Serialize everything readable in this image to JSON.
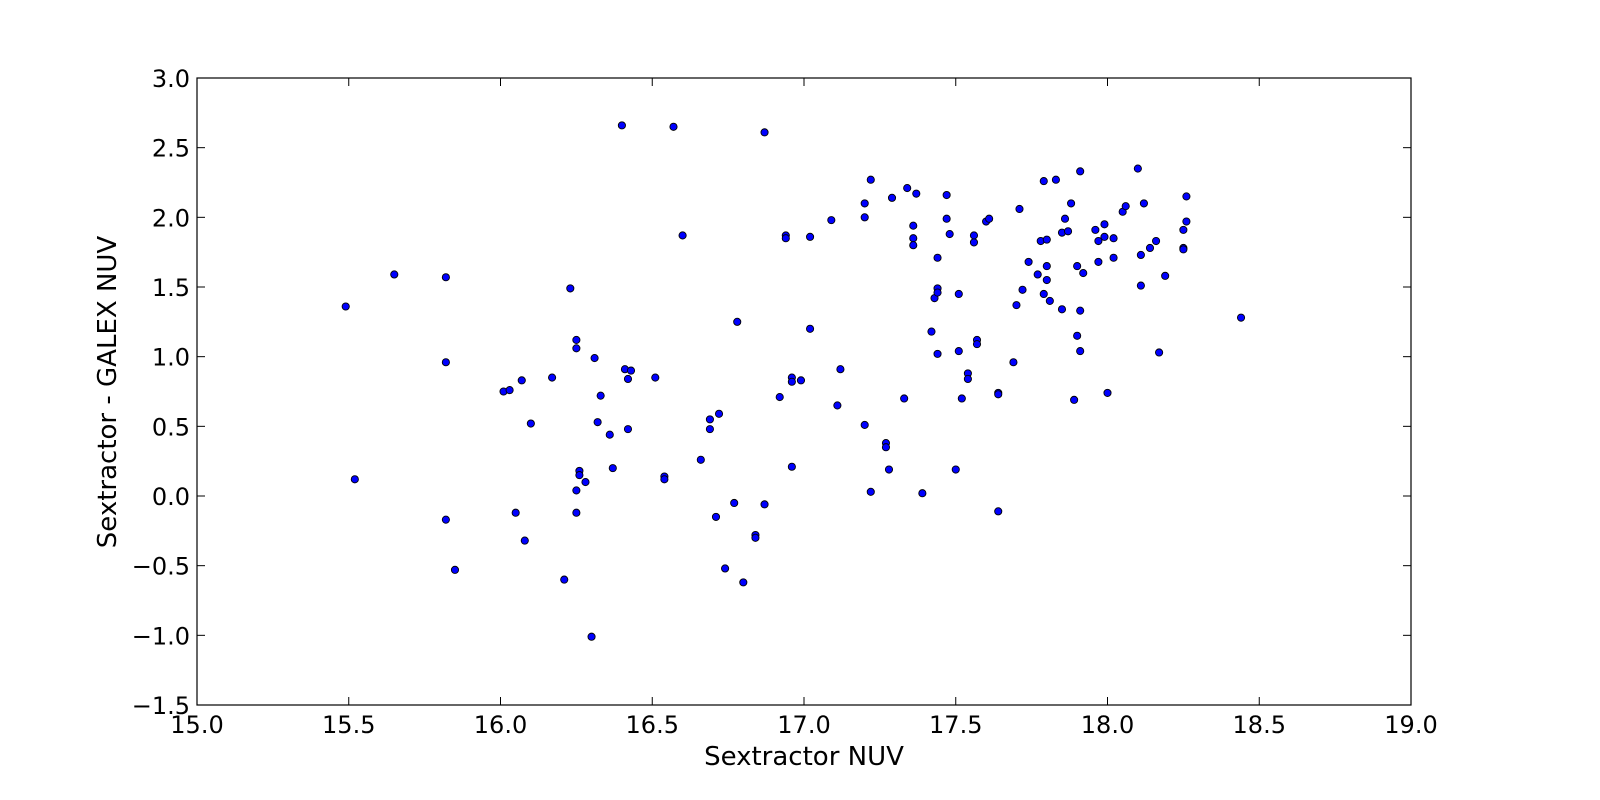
{
  "chart_data": {
    "type": "scatter",
    "title": "",
    "xlabel": "Sextractor NUV",
    "ylabel": "Sextractor - GALEX NUV",
    "xlim": [
      15.0,
      19.0
    ],
    "ylim": [
      -1.5,
      3.0
    ],
    "xticks": [
      15.0,
      15.5,
      16.0,
      16.5,
      17.0,
      17.5,
      18.0,
      18.5,
      19.0
    ],
    "yticks": [
      -1.5,
      -1.0,
      -0.5,
      0.0,
      0.5,
      1.0,
      1.5,
      2.0,
      2.5,
      3.0
    ],
    "xtick_labels": [
      "15.0",
      "15.5",
      "16.0",
      "16.5",
      "17.0",
      "17.5",
      "18.0",
      "18.5",
      "19.0"
    ],
    "ytick_labels": [
      "−1.5",
      "−1.0",
      "−0.5",
      "0.0",
      "0.5",
      "1.0",
      "1.5",
      "2.0",
      "2.5",
      "3.0"
    ],
    "grid": false,
    "marker_color": "#0000ff",
    "marker_edge_color": "#000000",
    "points": [
      [
        15.49,
        1.36
      ],
      [
        15.52,
        0.12
      ],
      [
        15.65,
        1.59
      ],
      [
        15.82,
        1.57
      ],
      [
        15.82,
        0.96
      ],
      [
        15.82,
        -0.17
      ],
      [
        15.85,
        -0.53
      ],
      [
        16.01,
        0.75
      ],
      [
        16.03,
        0.76
      ],
      [
        16.05,
        -0.12
      ],
      [
        16.07,
        0.83
      ],
      [
        16.08,
        -0.32
      ],
      [
        16.1,
        0.52
      ],
      [
        16.17,
        0.85
      ],
      [
        16.21,
        -0.6
      ],
      [
        16.23,
        1.49
      ],
      [
        16.25,
        1.12
      ],
      [
        16.25,
        1.06
      ],
      [
        16.25,
        0.04
      ],
      [
        16.25,
        -0.12
      ],
      [
        16.26,
        0.18
      ],
      [
        16.26,
        0.15
      ],
      [
        16.28,
        0.1
      ],
      [
        16.3,
        -1.01
      ],
      [
        16.31,
        0.99
      ],
      [
        16.32,
        0.53
      ],
      [
        16.33,
        0.72
      ],
      [
        16.36,
        0.44
      ],
      [
        16.37,
        0.2
      ],
      [
        16.4,
        2.66
      ],
      [
        16.41,
        0.91
      ],
      [
        16.42,
        0.84
      ],
      [
        16.42,
        0.48
      ],
      [
        16.43,
        0.9
      ],
      [
        16.51,
        0.85
      ],
      [
        16.54,
        0.14
      ],
      [
        16.54,
        0.12
      ],
      [
        16.57,
        2.65
      ],
      [
        16.6,
        1.87
      ],
      [
        16.66,
        0.26
      ],
      [
        16.69,
        0.55
      ],
      [
        16.69,
        0.48
      ],
      [
        16.71,
        -0.15
      ],
      [
        16.72,
        0.59
      ],
      [
        16.74,
        -0.52
      ],
      [
        16.77,
        -0.05
      ],
      [
        16.78,
        1.25
      ],
      [
        16.8,
        -0.62
      ],
      [
        16.84,
        -0.28
      ],
      [
        16.84,
        -0.3
      ],
      [
        16.87,
        2.61
      ],
      [
        16.87,
        -0.06
      ],
      [
        16.92,
        0.71
      ],
      [
        16.94,
        1.87
      ],
      [
        16.94,
        1.85
      ],
      [
        16.96,
        0.85
      ],
      [
        16.96,
        0.82
      ],
      [
        16.96,
        0.21
      ],
      [
        16.99,
        0.83
      ],
      [
        17.02,
        1.86
      ],
      [
        17.02,
        1.2
      ],
      [
        17.09,
        1.98
      ],
      [
        17.11,
        0.65
      ],
      [
        17.12,
        0.91
      ],
      [
        17.2,
        2.1
      ],
      [
        17.2,
        2.0
      ],
      [
        17.2,
        0.51
      ],
      [
        17.22,
        2.27
      ],
      [
        17.22,
        0.03
      ],
      [
        17.27,
        0.38
      ],
      [
        17.27,
        0.35
      ],
      [
        17.28,
        0.19
      ],
      [
        17.29,
        2.14
      ],
      [
        17.33,
        0.7
      ],
      [
        17.34,
        2.21
      ],
      [
        17.36,
        1.94
      ],
      [
        17.36,
        1.85
      ],
      [
        17.36,
        1.8
      ],
      [
        17.37,
        2.17
      ],
      [
        17.39,
        0.02
      ],
      [
        17.42,
        1.18
      ],
      [
        17.43,
        1.42
      ],
      [
        17.44,
        1.49
      ],
      [
        17.44,
        1.46
      ],
      [
        17.44,
        1.71
      ],
      [
        17.44,
        1.02
      ],
      [
        17.47,
        2.16
      ],
      [
        17.47,
        1.99
      ],
      [
        17.48,
        1.88
      ],
      [
        17.5,
        0.19
      ],
      [
        17.51,
        1.45
      ],
      [
        17.51,
        1.04
      ],
      [
        17.52,
        0.7
      ],
      [
        17.54,
        0.88
      ],
      [
        17.54,
        0.84
      ],
      [
        17.56,
        1.87
      ],
      [
        17.56,
        1.82
      ],
      [
        17.57,
        1.12
      ],
      [
        17.57,
        1.09
      ],
      [
        17.6,
        1.97
      ],
      [
        17.61,
        1.99
      ],
      [
        17.64,
        0.74
      ],
      [
        17.64,
        0.73
      ],
      [
        17.64,
        -0.11
      ],
      [
        17.69,
        0.96
      ],
      [
        17.7,
        1.37
      ],
      [
        17.71,
        2.06
      ],
      [
        17.72,
        1.48
      ],
      [
        17.74,
        1.68
      ],
      [
        17.77,
        1.59
      ],
      [
        17.78,
        1.83
      ],
      [
        17.79,
        2.26
      ],
      [
        17.79,
        1.45
      ],
      [
        17.8,
        1.65
      ],
      [
        17.8,
        1.55
      ],
      [
        17.8,
        1.84
      ],
      [
        17.81,
        1.4
      ],
      [
        17.83,
        2.27
      ],
      [
        17.85,
        1.89
      ],
      [
        17.85,
        1.34
      ],
      [
        17.86,
        1.99
      ],
      [
        17.87,
        1.9
      ],
      [
        17.88,
        2.1
      ],
      [
        17.89,
        0.69
      ],
      [
        17.9,
        1.65
      ],
      [
        17.9,
        1.15
      ],
      [
        17.91,
        2.33
      ],
      [
        17.91,
        1.33
      ],
      [
        17.91,
        1.04
      ],
      [
        17.92,
        1.6
      ],
      [
        17.96,
        1.91
      ],
      [
        17.97,
        1.68
      ],
      [
        17.97,
        1.83
      ],
      [
        17.99,
        1.95
      ],
      [
        17.99,
        1.86
      ],
      [
        18.0,
        0.74
      ],
      [
        18.02,
        1.85
      ],
      [
        18.02,
        1.71
      ],
      [
        18.05,
        2.04
      ],
      [
        18.06,
        2.08
      ],
      [
        18.1,
        2.35
      ],
      [
        18.11,
        1.51
      ],
      [
        18.11,
        1.73
      ],
      [
        18.12,
        2.1
      ],
      [
        18.14,
        1.78
      ],
      [
        18.16,
        1.83
      ],
      [
        18.17,
        1.03
      ],
      [
        18.19,
        1.58
      ],
      [
        18.25,
        1.91
      ],
      [
        18.25,
        1.78
      ],
      [
        18.25,
        1.77
      ],
      [
        18.26,
        2.15
      ],
      [
        18.26,
        1.97
      ],
      [
        18.44,
        1.28
      ]
    ]
  }
}
